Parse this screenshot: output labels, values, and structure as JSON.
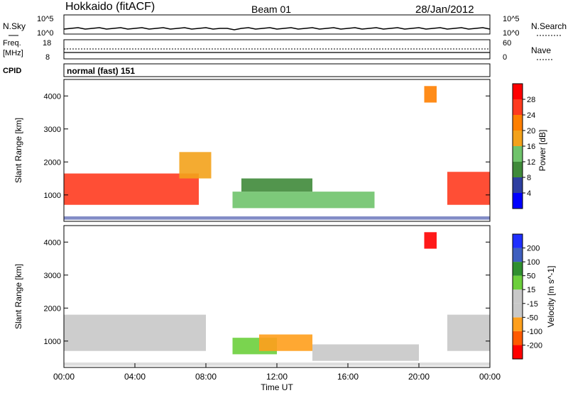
{
  "header": {
    "station": "Hokkaido (fitACF)",
    "beam": "Beam 01",
    "date": "28/Jan/2012"
  },
  "noise_panel": {
    "left_label": "N.Sky",
    "right_label": "N.Search",
    "left_ticks": [
      "10^5",
      "10^0"
    ],
    "right_ticks": [
      "10^5",
      "10^0"
    ]
  },
  "freq_panel": {
    "left_label_line1": "Freq.",
    "left_label_line2": "[MHz]",
    "right_label": "Nave",
    "left_ticks": [
      "18",
      "8"
    ],
    "right_ticks": [
      "60",
      "0"
    ]
  },
  "cpid_panel": {
    "label": "CPID",
    "value": "normal (fast) 151"
  },
  "x_axis": {
    "label": "Time UT",
    "ticks": [
      "00:00",
      "04:00",
      "08:00",
      "12:00",
      "16:00",
      "20:00",
      "00:00"
    ]
  },
  "colors": {
    "power": [
      "#0000ff",
      "#2e3fa0",
      "#3f8a3a",
      "#6fc36b",
      "#f3a21b",
      "#ff7f00",
      "#ff3b1f",
      "#ff0000"
    ],
    "velocity": [
      "#ff0000",
      "#ff5a00",
      "#ff9f1c",
      "#c8c8c8",
      "#c8c8c8",
      "#6ccf3c",
      "#2f8f2f",
      "#3f5fbf",
      "#1f2fff"
    ]
  },
  "chart_data": [
    {
      "type": "heatmap",
      "name": "power",
      "ylabel": "Slant Range [km]",
      "xlabel": "Time UT",
      "yticks": [
        "1000",
        "2000",
        "3000",
        "4000"
      ],
      "ylim": [
        200,
        4500
      ],
      "xlim": [
        0,
        24
      ],
      "colorbar_label": "Power [dB]",
      "colorbar_ticks": [
        "4",
        "8",
        "12",
        "16",
        "20",
        "24",
        "28"
      ],
      "regions": [
        {
          "t0": 0,
          "t1": 7.6,
          "r0": 700,
          "r1": 1650,
          "level": 28
        },
        {
          "t0": 6.5,
          "t1": 8.3,
          "r0": 1500,
          "r1": 2300,
          "level": 20
        },
        {
          "t0": 9.5,
          "t1": 17.5,
          "r0": 600,
          "r1": 1100,
          "level": 16
        },
        {
          "t0": 10,
          "t1": 14,
          "r0": 1100,
          "r1": 1500,
          "level": 12
        },
        {
          "t0": 20.3,
          "t1": 21,
          "r0": 3800,
          "r1": 4300,
          "level": 24
        },
        {
          "t0": 21.6,
          "t1": 24,
          "r0": 700,
          "r1": 1700,
          "level": 28
        }
      ]
    },
    {
      "type": "heatmap",
      "name": "velocity",
      "ylabel": "Slant Range [km]",
      "xlabel": "Time UT",
      "yticks": [
        "1000",
        "2000",
        "3000",
        "4000"
      ],
      "ylim": [
        200,
        4500
      ],
      "xlim": [
        0,
        24
      ],
      "colorbar_label": "Velocity [m s^-1]",
      "colorbar_ticks": [
        "200",
        "100",
        "50",
        "15",
        "-15",
        "-50",
        "-100",
        "-200"
      ],
      "regions": [
        {
          "t0": 0,
          "t1": 8,
          "r0": 700,
          "r1": 1800,
          "level": 0
        },
        {
          "t0": 9.5,
          "t1": 12,
          "r0": 600,
          "r1": 1100,
          "level": 30
        },
        {
          "t0": 11,
          "t1": 14,
          "r0": 700,
          "r1": 1200,
          "level": -60
        },
        {
          "t0": 14,
          "t1": 20,
          "r0": 400,
          "r1": 900,
          "level": 0
        },
        {
          "t0": 20.3,
          "t1": 21,
          "r0": 3800,
          "r1": 4300,
          "level": -200
        },
        {
          "t0": 21.6,
          "t1": 24,
          "r0": 700,
          "r1": 1800,
          "level": 0
        }
      ]
    }
  ]
}
